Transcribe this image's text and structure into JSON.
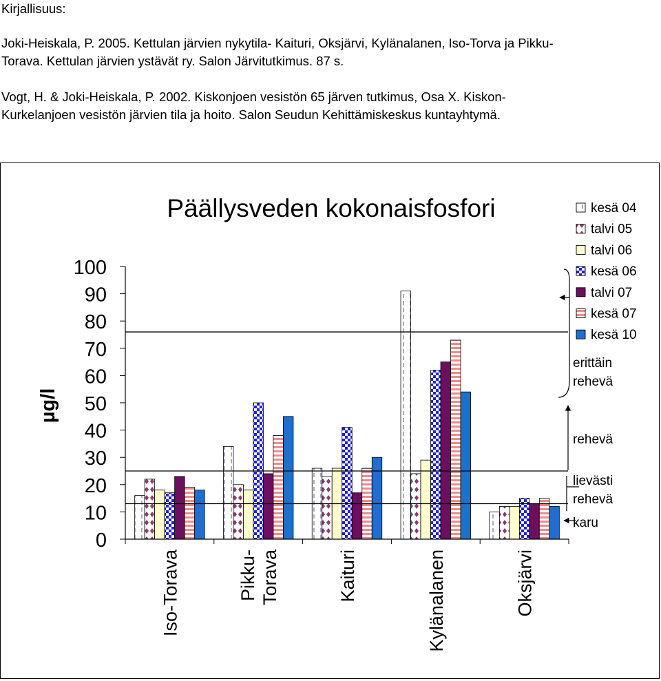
{
  "document": {
    "heading": "Kirjallisuus:",
    "references": [
      {
        "line1": "Joki-Heiskala, P. 2005. Kettulan järvien nykytila- Kaituri, Oksjärvi, Kylänalanen, Iso-Torva ja Pikku-",
        "line2": "Torava. Kettulan järvien ystävät ry. Salon Järvitutkimus. 87 s."
      },
      {
        "line1": "Vogt, H. & Joki-Heiskala, P. 2002. Kiskonjoen vesistön 65 järven tutkimus, Osa X. Kiskon-",
        "line2": "Kurkelanjoen vesistön järvien tila ja hoito. Salon Seudun Kehittämiskeskus kuntayhtymä."
      }
    ]
  },
  "chart_data": {
    "type": "bar",
    "title": "Päällysveden kokonaisfosfori",
    "ylabel": "µg/l",
    "xlabel": "",
    "ylim": [
      0,
      100
    ],
    "yticks": [
      "0",
      "10",
      "20",
      "30",
      "40",
      "50",
      "60",
      "70",
      "80",
      "90",
      "100"
    ],
    "grid": false,
    "legend_position": "right",
    "categories": [
      {
        "line1": "Iso-Torava",
        "line2": ""
      },
      {
        "line1": "Pikku-",
        "line2": "Torava"
      },
      {
        "line1": "Kaituri",
        "line2": ""
      },
      {
        "line1": "Kylänalanen",
        "line2": ""
      },
      {
        "line1": "Oksjärvi",
        "line2": ""
      }
    ],
    "series": [
      {
        "name": "kesä 04",
        "pattern": "dashed-vertical",
        "color": "#ffffff",
        "accent": "#7b7bb0",
        "values": [
          16,
          34,
          26,
          91,
          10
        ]
      },
      {
        "name": "talvi 05",
        "pattern": "diamonds",
        "color": "#ffffff",
        "accent": "#8b3a6b",
        "values": [
          22,
          20,
          23,
          24,
          12
        ]
      },
      {
        "name": "talvi 06",
        "pattern": "solid",
        "color": "#ffffcc",
        "accent": "#ffffcc",
        "values": [
          18,
          18,
          26,
          29,
          12
        ]
      },
      {
        "name": "kesä 06",
        "pattern": "checker",
        "color": "#ffffff",
        "accent": "#1f1fd6",
        "values": [
          17,
          50,
          41,
          62,
          15
        ]
      },
      {
        "name": "talvi 07",
        "pattern": "solid",
        "color": "#6b0f5e",
        "accent": "#6b0f5e",
        "values": [
          23,
          24,
          17,
          65,
          13
        ]
      },
      {
        "name": "kesä 07",
        "pattern": "stripes",
        "color": "#ffffff",
        "accent": "#f08a8a",
        "values": [
          19,
          38,
          26,
          73,
          15
        ]
      },
      {
        "name": "kesä 10",
        "pattern": "solid",
        "color": "#1e6fd0",
        "accent": "#1e6fd0",
        "values": [
          18,
          45,
          30,
          54,
          12
        ]
      }
    ],
    "threshold_lines": [
      13,
      25,
      76
    ],
    "classes": [
      {
        "line1": "erittäin",
        "line2": "rehevä"
      },
      {
        "line1": "rehevä",
        "line2": ""
      },
      {
        "line1": "lievästi",
        "line2": "rehevä"
      },
      {
        "line1": "karu",
        "line2": ""
      }
    ]
  }
}
